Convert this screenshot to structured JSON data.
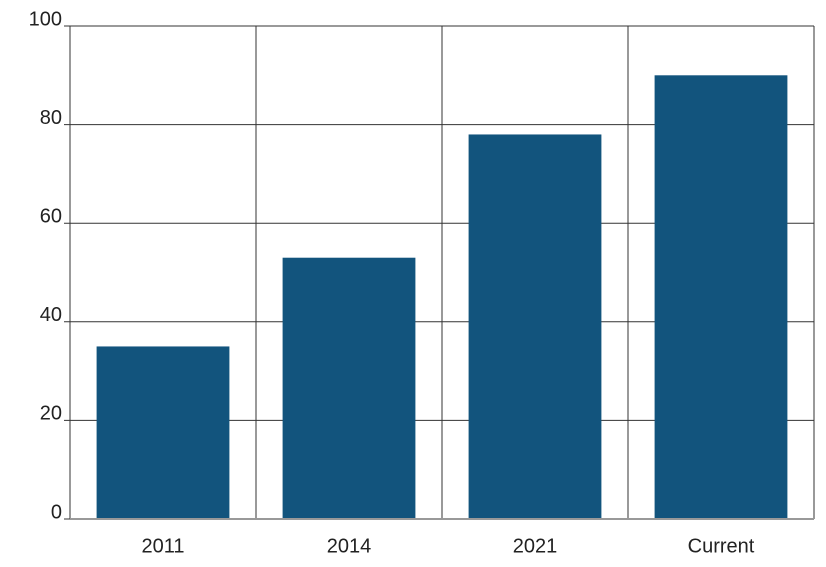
{
  "chart_data": {
    "type": "bar",
    "categories": [
      "2011",
      "2014",
      "2021",
      "Current"
    ],
    "values": [
      35,
      53,
      78,
      90
    ],
    "color": "#12547d",
    "ylim": [
      0,
      100
    ],
    "yticks": [
      0,
      20,
      40,
      60,
      80,
      100
    ],
    "grid": true
  }
}
